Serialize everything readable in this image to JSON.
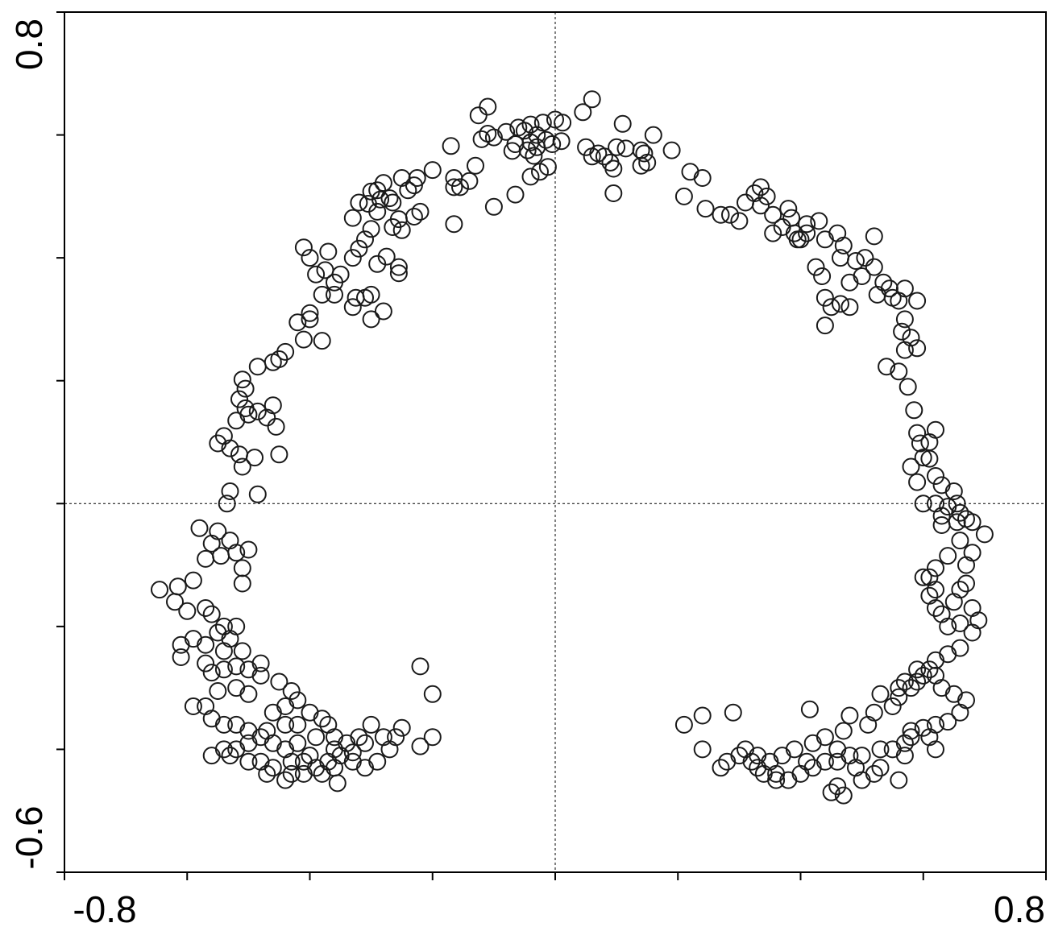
{
  "chart_data": {
    "type": "scatter",
    "title": "",
    "xlabel": "",
    "ylabel": "",
    "xlim": [
      -0.8,
      0.8
    ],
    "ylim": [
      -0.6,
      0.8
    ],
    "x_tick_labels": [
      "-0.8",
      "0.8"
    ],
    "y_tick_labels": [
      "0.8",
      "-0.6"
    ],
    "x_minor_ticks": [
      -0.6,
      -0.4,
      -0.2,
      0.0,
      0.2,
      0.4,
      0.6
    ],
    "y_minor_ticks": [
      0.6,
      0.4,
      0.2,
      0.0,
      -0.2,
      -0.4
    ],
    "zero_lines": {
      "x": 0.0,
      "y": 0.0,
      "style": "dotted"
    },
    "grid": false,
    "marker": "open-circle",
    "colors": {
      "marker": "#1a1a1a",
      "axes": "#000000",
      "background": "#ffffff"
    },
    "points": [
      [
        0.06,
        0.658
      ],
      [
        0.045,
        0.637
      ],
      [
        0.0,
        0.625
      ],
      [
        0.012,
        0.62
      ],
      [
        -0.02,
        0.62
      ],
      [
        -0.04,
        0.617
      ],
      [
        -0.05,
        0.607
      ],
      [
        -0.06,
        0.612
      ],
      [
        -0.08,
        0.605
      ],
      [
        -0.1,
        0.596
      ],
      [
        -0.11,
        0.602
      ],
      [
        -0.12,
        0.593
      ],
      [
        -0.03,
        0.6
      ],
      [
        -0.015,
        0.592
      ],
      [
        -0.005,
        0.585
      ],
      [
        0.01,
        0.59
      ],
      [
        -0.04,
        0.588
      ],
      [
        -0.065,
        0.585
      ],
      [
        -0.07,
        0.574
      ],
      [
        -0.03,
        0.58
      ],
      [
        -0.035,
        0.566
      ],
      [
        -0.045,
        0.575
      ],
      [
        -0.012,
        0.548
      ],
      [
        -0.025,
        0.54
      ],
      [
        -0.04,
        0.532
      ],
      [
        -0.065,
        0.503
      ],
      [
        0.05,
        0.58
      ],
      [
        0.07,
        0.57
      ],
      [
        0.08,
        0.565
      ],
      [
        0.06,
        0.565
      ],
      [
        0.1,
        0.58
      ],
      [
        0.115,
        0.578
      ],
      [
        0.14,
        0.575
      ],
      [
        0.145,
        0.57
      ],
      [
        0.09,
        0.555
      ],
      [
        0.095,
        0.545
      ],
      [
        0.14,
        0.55
      ],
      [
        0.15,
        0.555
      ],
      [
        0.095,
        0.505
      ],
      [
        -0.125,
        0.632
      ],
      [
        -0.11,
        0.646
      ],
      [
        -0.13,
        0.55
      ],
      [
        -0.14,
        0.525
      ],
      [
        -0.155,
        0.515
      ],
      [
        -0.1,
        0.483
      ],
      [
        -0.17,
        0.582
      ],
      [
        -0.2,
        0.543
      ],
      [
        -0.165,
        0.53
      ],
      [
        -0.165,
        0.515
      ],
      [
        -0.225,
        0.53
      ],
      [
        -0.23,
        0.518
      ],
      [
        -0.24,
        0.51
      ],
      [
        -0.25,
        0.53
      ],
      [
        -0.265,
        0.49
      ],
      [
        -0.28,
        0.522
      ],
      [
        -0.29,
        0.51
      ],
      [
        -0.3,
        0.508
      ],
      [
        -0.27,
        0.497
      ],
      [
        -0.285,
        0.495
      ],
      [
        -0.305,
        0.488
      ],
      [
        -0.32,
        0.49
      ],
      [
        -0.29,
        0.475
      ],
      [
        -0.22,
        0.475
      ],
      [
        -0.23,
        0.467
      ],
      [
        -0.165,
        0.455
      ],
      [
        -0.255,
        0.463
      ],
      [
        -0.265,
        0.45
      ],
      [
        -0.33,
        0.465
      ],
      [
        -0.3,
        0.447
      ],
      [
        -0.31,
        0.43
      ],
      [
        -0.25,
        0.445
      ],
      [
        -0.32,
        0.415
      ],
      [
        -0.41,
        0.417
      ],
      [
        -0.4,
        0.4
      ],
      [
        -0.33,
        0.4
      ],
      [
        -0.275,
        0.402
      ],
      [
        -0.29,
        0.39
      ],
      [
        -0.255,
        0.385
      ],
      [
        -0.255,
        0.375
      ],
      [
        -0.37,
        0.41
      ],
      [
        -0.375,
        0.38
      ],
      [
        -0.39,
        0.373
      ],
      [
        -0.35,
        0.373
      ],
      [
        -0.36,
        0.36
      ],
      [
        -0.36,
        0.34
      ],
      [
        -0.325,
        0.335
      ],
      [
        -0.31,
        0.335
      ],
      [
        -0.3,
        0.34
      ],
      [
        -0.33,
        0.32
      ],
      [
        -0.3,
        0.3
      ],
      [
        -0.28,
        0.313
      ],
      [
        -0.38,
        0.34
      ],
      [
        -0.4,
        0.31
      ],
      [
        -0.4,
        0.3
      ],
      [
        -0.42,
        0.295
      ],
      [
        -0.38,
        0.265
      ],
      [
        -0.41,
        0.267
      ],
      [
        -0.44,
        0.247
      ],
      [
        -0.45,
        0.235
      ],
      [
        -0.46,
        0.23
      ],
      [
        -0.485,
        0.223
      ],
      [
        -0.51,
        0.202
      ],
      [
        -0.505,
        0.187
      ],
      [
        -0.515,
        0.17
      ],
      [
        -0.505,
        0.155
      ],
      [
        -0.5,
        0.145
      ],
      [
        -0.485,
        0.15
      ],
      [
        -0.46,
        0.16
      ],
      [
        -0.47,
        0.14
      ],
      [
        -0.455,
        0.125
      ],
      [
        -0.52,
        0.135
      ],
      [
        -0.54,
        0.11
      ],
      [
        -0.55,
        0.098
      ],
      [
        -0.53,
        0.09
      ],
      [
        -0.515,
        0.08
      ],
      [
        -0.51,
        0.06
      ],
      [
        -0.49,
        0.075
      ],
      [
        -0.45,
        0.08
      ],
      [
        -0.485,
        0.015
      ],
      [
        -0.53,
        0.02
      ],
      [
        -0.535,
        0.0
      ],
      [
        -0.55,
        -0.045
      ],
      [
        -0.53,
        -0.06
      ],
      [
        -0.58,
        -0.04
      ],
      [
        -0.56,
        -0.065
      ],
      [
        -0.545,
        -0.085
      ],
      [
        -0.52,
        -0.08
      ],
      [
        -0.57,
        -0.09
      ],
      [
        -0.5,
        -0.075
      ],
      [
        -0.51,
        -0.105
      ],
      [
        -0.51,
        -0.13
      ],
      [
        -0.59,
        -0.125
      ],
      [
        -0.615,
        -0.135
      ],
      [
        -0.62,
        -0.16
      ],
      [
        -0.645,
        -0.14
      ],
      [
        -0.6,
        -0.175
      ],
      [
        -0.57,
        -0.17
      ],
      [
        -0.56,
        -0.18
      ],
      [
        -0.54,
        -0.2
      ],
      [
        -0.55,
        -0.21
      ],
      [
        -0.52,
        -0.2
      ],
      [
        -0.53,
        -0.22
      ],
      [
        -0.51,
        -0.24
      ],
      [
        -0.54,
        -0.24
      ],
      [
        -0.57,
        -0.23
      ],
      [
        -0.59,
        -0.22
      ],
      [
        -0.61,
        -0.23
      ],
      [
        -0.61,
        -0.25
      ],
      [
        -0.57,
        -0.26
      ],
      [
        -0.56,
        -0.275
      ],
      [
        -0.54,
        -0.27
      ],
      [
        -0.52,
        -0.265
      ],
      [
        -0.5,
        -0.27
      ],
      [
        -0.48,
        -0.26
      ],
      [
        -0.48,
        -0.28
      ],
      [
        -0.45,
        -0.29
      ],
      [
        -0.43,
        -0.305
      ],
      [
        -0.42,
        -0.32
      ],
      [
        -0.44,
        -0.33
      ],
      [
        -0.46,
        -0.34
      ],
      [
        -0.5,
        -0.31
      ],
      [
        -0.52,
        -0.3
      ],
      [
        -0.55,
        -0.305
      ],
      [
        -0.57,
        -0.33
      ],
      [
        -0.59,
        -0.33
      ],
      [
        -0.56,
        -0.35
      ],
      [
        -0.54,
        -0.36
      ],
      [
        -0.52,
        -0.36
      ],
      [
        -0.5,
        -0.37
      ],
      [
        -0.47,
        -0.37
      ],
      [
        -0.44,
        -0.36
      ],
      [
        -0.42,
        -0.36
      ],
      [
        -0.4,
        -0.34
      ],
      [
        -0.38,
        -0.35
      ],
      [
        -0.37,
        -0.36
      ],
      [
        -0.39,
        -0.38
      ],
      [
        -0.42,
        -0.39
      ],
      [
        -0.44,
        -0.4
      ],
      [
        -0.46,
        -0.39
      ],
      [
        -0.48,
        -0.38
      ],
      [
        -0.5,
        -0.39
      ],
      [
        -0.52,
        -0.4
      ],
      [
        -0.54,
        -0.4
      ],
      [
        -0.56,
        -0.41
      ],
      [
        -0.53,
        -0.41
      ],
      [
        -0.5,
        -0.42
      ],
      [
        -0.48,
        -0.42
      ],
      [
        -0.46,
        -0.43
      ],
      [
        -0.43,
        -0.42
      ],
      [
        -0.41,
        -0.42
      ],
      [
        -0.39,
        -0.43
      ],
      [
        -0.37,
        -0.42
      ],
      [
        -0.35,
        -0.41
      ],
      [
        -0.33,
        -0.405
      ],
      [
        -0.31,
        -0.39
      ],
      [
        -0.36,
        -0.38
      ],
      [
        -0.4,
        -0.41
      ],
      [
        -0.36,
        -0.4
      ],
      [
        -0.34,
        -0.39
      ],
      [
        -0.32,
        -0.38
      ],
      [
        -0.3,
        -0.36
      ],
      [
        -0.28,
        -0.38
      ],
      [
        -0.26,
        -0.38
      ],
      [
        -0.25,
        -0.365
      ],
      [
        -0.27,
        -0.4
      ],
      [
        -0.29,
        -0.42
      ],
      [
        -0.31,
        -0.43
      ],
      [
        -0.33,
        -0.42
      ],
      [
        -0.36,
        -0.43
      ],
      [
        -0.38,
        -0.44
      ],
      [
        -0.41,
        -0.44
      ],
      [
        -0.43,
        -0.44
      ],
      [
        -0.47,
        -0.44
      ],
      [
        -0.355,
        -0.455
      ],
      [
        -0.44,
        -0.45
      ],
      [
        -0.22,
        -0.395
      ],
      [
        -0.2,
        -0.38
      ],
      [
        -0.22,
        -0.265
      ],
      [
        -0.2,
        -0.31
      ],
      [
        0.11,
        0.618
      ],
      [
        0.16,
        0.6
      ],
      [
        0.19,
        0.575
      ],
      [
        0.22,
        0.54
      ],
      [
        0.21,
        0.5
      ],
      [
        0.24,
        0.53
      ],
      [
        0.27,
        0.47
      ],
      [
        0.285,
        0.47
      ],
      [
        0.245,
        0.48
      ],
      [
        0.3,
        0.46
      ],
      [
        0.31,
        0.49
      ],
      [
        0.325,
        0.505
      ],
      [
        0.335,
        0.515
      ],
      [
        0.345,
        0.5
      ],
      [
        0.335,
        0.485
      ],
      [
        0.355,
        0.47
      ],
      [
        0.355,
        0.44
      ],
      [
        0.37,
        0.45
      ],
      [
        0.38,
        0.48
      ],
      [
        0.385,
        0.465
      ],
      [
        0.39,
        0.44
      ],
      [
        0.4,
        0.43
      ],
      [
        0.41,
        0.44
      ],
      [
        0.395,
        0.43
      ],
      [
        0.41,
        0.455
      ],
      [
        0.43,
        0.46
      ],
      [
        0.44,
        0.43
      ],
      [
        0.46,
        0.44
      ],
      [
        0.47,
        0.42
      ],
      [
        0.465,
        0.4
      ],
      [
        0.49,
        0.395
      ],
      [
        0.505,
        0.4
      ],
      [
        0.52,
        0.435
      ],
      [
        0.52,
        0.385
      ],
      [
        0.425,
        0.385
      ],
      [
        0.435,
        0.37
      ],
      [
        0.48,
        0.36
      ],
      [
        0.44,
        0.335
      ],
      [
        0.525,
        0.34
      ],
      [
        0.535,
        0.36
      ],
      [
        0.545,
        0.35
      ],
      [
        0.55,
        0.335
      ],
      [
        0.56,
        0.33
      ],
      [
        0.57,
        0.35
      ],
      [
        0.59,
        0.33
      ],
      [
        0.57,
        0.3
      ],
      [
        0.44,
        0.29
      ],
      [
        0.465,
        0.325
      ],
      [
        0.5,
        0.37
      ],
      [
        0.565,
        0.28
      ],
      [
        0.45,
        0.32
      ],
      [
        0.48,
        0.32
      ],
      [
        0.58,
        0.27
      ],
      [
        0.59,
        0.253
      ],
      [
        0.57,
        0.25
      ],
      [
        0.56,
        0.215
      ],
      [
        0.54,
        0.223
      ],
      [
        0.575,
        0.19
      ],
      [
        0.585,
        0.152
      ],
      [
        0.59,
        0.115
      ],
      [
        0.62,
        0.12
      ],
      [
        0.61,
        0.1
      ],
      [
        0.595,
        0.098
      ],
      [
        0.61,
        0.073
      ],
      [
        0.6,
        0.075
      ],
      [
        0.58,
        0.06
      ],
      [
        0.62,
        0.045
      ],
      [
        0.59,
        0.035
      ],
      [
        0.63,
        0.03
      ],
      [
        0.65,
        0.02
      ],
      [
        0.655,
        0.0
      ],
      [
        0.6,
        0.0
      ],
      [
        0.62,
        0.0
      ],
      [
        0.63,
        -0.02
      ],
      [
        0.64,
        -0.005
      ],
      [
        0.66,
        -0.015
      ],
      [
        0.67,
        -0.025
      ],
      [
        0.68,
        -0.03
      ],
      [
        0.655,
        -0.03
      ],
      [
        0.63,
        -0.035
      ],
      [
        0.66,
        -0.06
      ],
      [
        0.68,
        -0.08
      ],
      [
        0.7,
        -0.05
      ],
      [
        0.64,
        -0.085
      ],
      [
        0.62,
        -0.105
      ],
      [
        0.6,
        -0.12
      ],
      [
        0.61,
        -0.12
      ],
      [
        0.62,
        -0.14
      ],
      [
        0.61,
        -0.15
      ],
      [
        0.62,
        -0.17
      ],
      [
        0.63,
        -0.18
      ],
      [
        0.64,
        -0.2
      ],
      [
        0.66,
        -0.195
      ],
      [
        0.65,
        -0.16
      ],
      [
        0.66,
        -0.14
      ],
      [
        0.67,
        -0.13
      ],
      [
        0.67,
        -0.1
      ],
      [
        0.68,
        -0.17
      ],
      [
        0.69,
        -0.19
      ],
      [
        0.68,
        -0.21
      ],
      [
        0.66,
        -0.235
      ],
      [
        0.64,
        -0.245
      ],
      [
        0.62,
        -0.255
      ],
      [
        0.61,
        -0.27
      ],
      [
        0.6,
        -0.28
      ],
      [
        0.59,
        -0.29
      ],
      [
        0.58,
        -0.3
      ],
      [
        0.56,
        -0.315
      ],
      [
        0.55,
        -0.33
      ],
      [
        0.52,
        -0.34
      ],
      [
        0.53,
        -0.31
      ],
      [
        0.56,
        -0.3
      ],
      [
        0.57,
        -0.29
      ],
      [
        0.59,
        -0.27
      ],
      [
        0.62,
        -0.28
      ],
      [
        0.63,
        -0.3
      ],
      [
        0.65,
        -0.31
      ],
      [
        0.67,
        -0.32
      ],
      [
        0.66,
        -0.34
      ],
      [
        0.64,
        -0.355
      ],
      [
        0.62,
        -0.36
      ],
      [
        0.6,
        -0.365
      ],
      [
        0.58,
        -0.37
      ],
      [
        0.57,
        -0.39
      ],
      [
        0.55,
        -0.4
      ],
      [
        0.53,
        -0.4
      ],
      [
        0.5,
        -0.41
      ],
      [
        0.48,
        -0.41
      ],
      [
        0.46,
        -0.42
      ],
      [
        0.44,
        -0.42
      ],
      [
        0.42,
        -0.43
      ],
      [
        0.4,
        -0.44
      ],
      [
        0.38,
        -0.45
      ],
      [
        0.36,
        -0.45
      ],
      [
        0.34,
        -0.44
      ],
      [
        0.33,
        -0.43
      ],
      [
        0.32,
        -0.42
      ],
      [
        0.3,
        -0.41
      ],
      [
        0.28,
        -0.42
      ],
      [
        0.27,
        -0.43
      ],
      [
        0.24,
        -0.4
      ],
      [
        0.21,
        -0.36
      ],
      [
        0.24,
        -0.345
      ],
      [
        0.29,
        -0.34
      ],
      [
        0.415,
        -0.335
      ],
      [
        0.48,
        -0.345
      ],
      [
        0.51,
        -0.36
      ],
      [
        0.47,
        -0.37
      ],
      [
        0.44,
        -0.38
      ],
      [
        0.42,
        -0.39
      ],
      [
        0.39,
        -0.4
      ],
      [
        0.37,
        -0.41
      ],
      [
        0.35,
        -0.42
      ],
      [
        0.33,
        -0.41
      ],
      [
        0.31,
        -0.4
      ],
      [
        0.36,
        -0.44
      ],
      [
        0.41,
        -0.42
      ],
      [
        0.49,
        -0.43
      ],
      [
        0.53,
        -0.43
      ],
      [
        0.56,
        -0.45
      ],
      [
        0.52,
        -0.44
      ],
      [
        0.46,
        -0.4
      ],
      [
        0.45,
        -0.47
      ],
      [
        0.46,
        -0.46
      ],
      [
        0.47,
        -0.475
      ],
      [
        0.5,
        -0.45
      ],
      [
        0.58,
        -0.38
      ],
      [
        0.61,
        -0.38
      ],
      [
        0.57,
        -0.41
      ],
      [
        0.62,
        -0.4
      ]
    ]
  }
}
